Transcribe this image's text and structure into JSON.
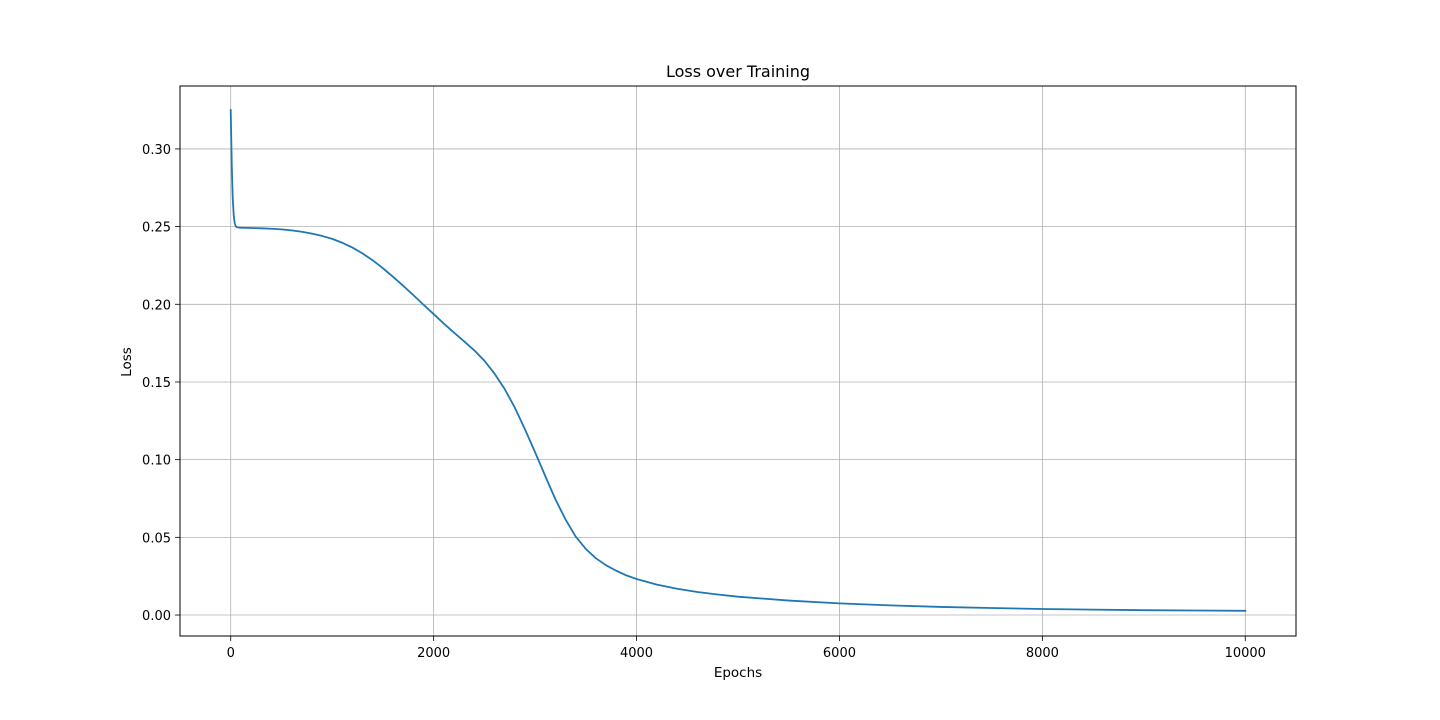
{
  "chart_data": {
    "type": "line",
    "title": "Loss over Training",
    "xlabel": "Epochs",
    "ylabel": "Loss",
    "xlim": [
      -500,
      10500
    ],
    "ylim": [
      -0.0135,
      0.3405
    ],
    "grid": true,
    "line_color": "#1f77b4",
    "x_ticks": [
      0,
      2000,
      4000,
      6000,
      8000,
      10000
    ],
    "x_tick_labels": [
      "0",
      "2000",
      "4000",
      "6000",
      "8000",
      "10000"
    ],
    "y_ticks": [
      0.0,
      0.05,
      0.1,
      0.15,
      0.2,
      0.25,
      0.3
    ],
    "y_tick_labels": [
      "0.00",
      "0.05",
      "0.10",
      "0.15",
      "0.20",
      "0.25",
      "0.30"
    ],
    "series": [
      {
        "x": [
          0,
          10,
          20,
          30,
          40,
          50,
          60,
          80,
          100,
          150,
          200,
          300,
          400,
          500,
          600,
          700,
          800,
          900,
          1000,
          1100,
          1200,
          1300,
          1400,
          1500,
          1600,
          1700,
          1800,
          1900,
          2000,
          2100,
          2200,
          2300,
          2400,
          2500,
          2600,
          2700,
          2800,
          2900,
          3000,
          3100,
          3200,
          3300,
          3400,
          3500,
          3600,
          3700,
          3800,
          3900,
          4000,
          4200,
          4400,
          4600,
          4800,
          5000,
          5500,
          6000,
          6500,
          7000,
          7500,
          8000,
          8500,
          9000,
          9500,
          10000
        ],
        "y": [
          0.325,
          0.29,
          0.268,
          0.257,
          0.252,
          0.2502,
          0.2496,
          0.2494,
          0.2493,
          0.2492,
          0.2491,
          0.2489,
          0.2486,
          0.2482,
          0.2476,
          0.2467,
          0.2455,
          0.244,
          0.2421,
          0.2396,
          0.2365,
          0.2327,
          0.2283,
          0.2232,
          0.2177,
          0.2119,
          0.2059,
          0.1997,
          0.1937,
          0.1876,
          0.1818,
          0.1762,
          0.1704,
          0.1637,
          0.1554,
          0.1455,
          0.1335,
          0.1196,
          0.1048,
          0.0895,
          0.0745,
          0.0615,
          0.0505,
          0.0425,
          0.0365,
          0.032,
          0.0285,
          0.0255,
          0.0232,
          0.0196,
          0.0169,
          0.0148,
          0.0132,
          0.0118,
          0.0093,
          0.0075,
          0.0062,
          0.0052,
          0.0045,
          0.0039,
          0.0035,
          0.0031,
          0.0029,
          0.0027
        ]
      }
    ]
  }
}
